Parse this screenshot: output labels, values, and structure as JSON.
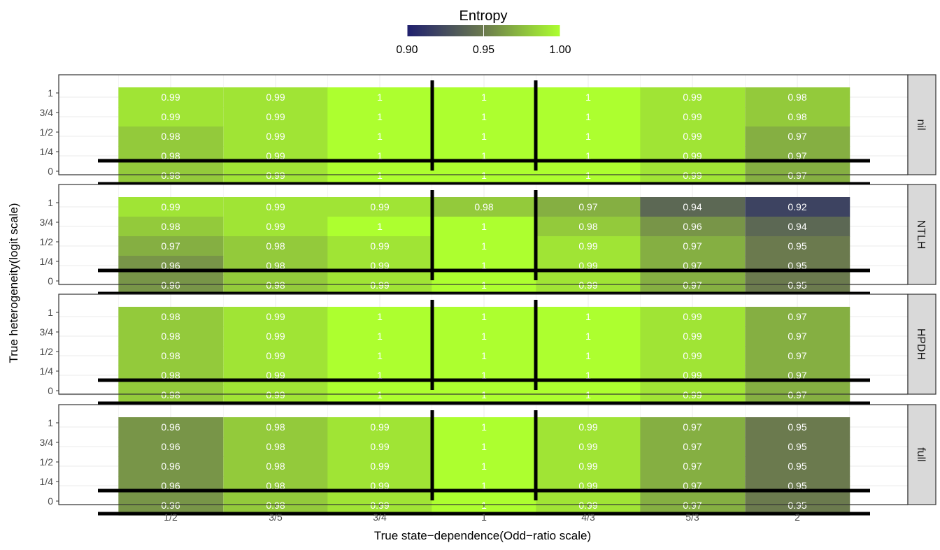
{
  "chart_data": {
    "type": "heatmap",
    "legend": {
      "title": "Entropy",
      "position": "top",
      "range": [
        0.9,
        1.0
      ],
      "ticks": [
        "0.90",
        "0.95",
        "1.00"
      ],
      "color_low": "#1f1f6e",
      "color_mid": "#6b7a4e",
      "color_high": "#adff2f"
    },
    "xlabel": "True state−dependence(Odd−ratio scale)",
    "ylabel": "True heterogeneity(logit scale)",
    "x_categories": [
      "1/2",
      "3/5",
      "3/4",
      "1",
      "4/3",
      "5/3",
      "2"
    ],
    "y_categories": [
      "0",
      "1/4",
      "1/2",
      "3/4",
      "1"
    ],
    "grid": true,
    "reference_lines": "thick black lines around x = 1 and y = 0",
    "panels": [
      {
        "name": "nil",
        "rows": [
          {
            "y": "1",
            "values": [
              "0.99",
              "0.99",
              "1",
              "1",
              "1",
              "0.99",
              "0.98"
            ]
          },
          {
            "y": "3/4",
            "values": [
              "0.99",
              "0.99",
              "1",
              "1",
              "1",
              "0.99",
              "0.98"
            ]
          },
          {
            "y": "1/2",
            "values": [
              "0.98",
              "0.99",
              "1",
              "1",
              "1",
              "0.99",
              "0.97"
            ]
          },
          {
            "y": "1/4",
            "values": [
              "0.98",
              "0.99",
              "1",
              "1",
              "1",
              "0.99",
              "0.97"
            ]
          },
          {
            "y": "0",
            "values": [
              "0.98",
              "0.99",
              "1",
              "1",
              "1",
              "0.99",
              "0.97"
            ]
          }
        ]
      },
      {
        "name": "NTLH",
        "rows": [
          {
            "y": "1",
            "values": [
              "0.99",
              "0.99",
              "0.99",
              "0.98",
              "0.97",
              "0.94",
              "0.92"
            ]
          },
          {
            "y": "3/4",
            "values": [
              "0.98",
              "0.99",
              "1",
              "1",
              "0.98",
              "0.96",
              "0.94"
            ]
          },
          {
            "y": "1/2",
            "values": [
              "0.97",
              "0.98",
              "0.99",
              "1",
              "0.99",
              "0.97",
              "0.95"
            ]
          },
          {
            "y": "1/4",
            "values": [
              "0.96",
              "0.98",
              "0.99",
              "1",
              "0.99",
              "0.97",
              "0.95"
            ]
          },
          {
            "y": "0",
            "values": [
              "0.96",
              "0.98",
              "0.99",
              "1",
              "0.99",
              "0.97",
              "0.95"
            ]
          }
        ]
      },
      {
        "name": "HPDH",
        "rows": [
          {
            "y": "1",
            "values": [
              "0.98",
              "0.99",
              "1",
              "1",
              "1",
              "0.99",
              "0.97"
            ]
          },
          {
            "y": "3/4",
            "values": [
              "0.98",
              "0.99",
              "1",
              "1",
              "1",
              "0.99",
              "0.97"
            ]
          },
          {
            "y": "1/2",
            "values": [
              "0.98",
              "0.99",
              "1",
              "1",
              "1",
              "0.99",
              "0.97"
            ]
          },
          {
            "y": "1/4",
            "values": [
              "0.98",
              "0.99",
              "1",
              "1",
              "1",
              "0.99",
              "0.97"
            ]
          },
          {
            "y": "0",
            "values": [
              "0.98",
              "0.99",
              "1",
              "1",
              "1",
              "0.99",
              "0.97"
            ]
          }
        ]
      },
      {
        "name": "full",
        "rows": [
          {
            "y": "1",
            "values": [
              "0.96",
              "0.98",
              "0.99",
              "1",
              "0.99",
              "0.97",
              "0.95"
            ]
          },
          {
            "y": "3/4",
            "values": [
              "0.96",
              "0.98",
              "0.99",
              "1",
              "0.99",
              "0.97",
              "0.95"
            ]
          },
          {
            "y": "1/2",
            "values": [
              "0.96",
              "0.98",
              "0.99",
              "1",
              "0.99",
              "0.97",
              "0.95"
            ]
          },
          {
            "y": "1/4",
            "values": [
              "0.96",
              "0.98",
              "0.99",
              "1",
              "0.99",
              "0.97",
              "0.95"
            ]
          },
          {
            "y": "0",
            "values": [
              "0.96",
              "0.98",
              "0.99",
              "1",
              "0.99",
              "0.97",
              "0.95"
            ]
          }
        ]
      }
    ]
  }
}
